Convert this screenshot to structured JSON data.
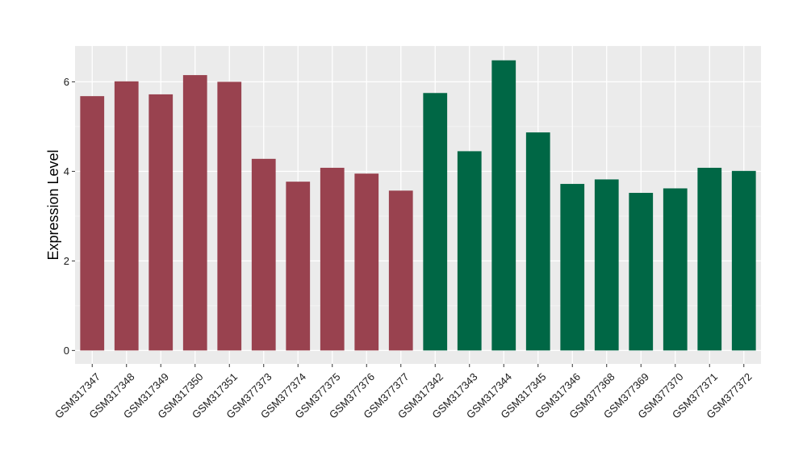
{
  "chart_data": {
    "type": "bar",
    "title": "",
    "xlabel": "",
    "ylabel": "Expression Level",
    "ylim": [
      -0.3,
      6.8
    ],
    "yticks": [
      0,
      2,
      4,
      6
    ],
    "grid": true,
    "legend": "none",
    "colors": {
      "panel_background": "#ebebeb",
      "gridline": "#ffffff",
      "group_1": "#99424f",
      "group_2": "#006745"
    },
    "categories": [
      "GSM317347",
      "GSM317348",
      "GSM317349",
      "GSM317350",
      "GSM317351",
      "GSM377373",
      "GSM377374",
      "GSM377375",
      "GSM377376",
      "GSM377377",
      "GSM317342",
      "GSM317343",
      "GSM317344",
      "GSM317345",
      "GSM317346",
      "GSM377368",
      "GSM377369",
      "GSM377370",
      "GSM377371",
      "GSM377372"
    ],
    "values": [
      5.68,
      6.01,
      5.72,
      6.15,
      6.0,
      4.28,
      3.77,
      4.08,
      3.95,
      3.57,
      5.75,
      4.45,
      6.48,
      4.87,
      3.72,
      3.82,
      3.52,
      3.62,
      4.08,
      4.01
    ],
    "bar_groups": [
      1,
      1,
      1,
      1,
      1,
      1,
      1,
      1,
      1,
      1,
      2,
      2,
      2,
      2,
      2,
      2,
      2,
      2,
      2,
      2
    ]
  }
}
